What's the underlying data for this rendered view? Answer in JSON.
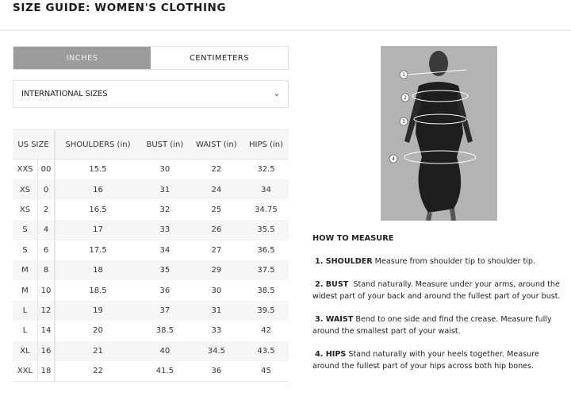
{
  "header": {
    "title": "SIZE GUIDE: WOMEN'S CLOTHING"
  },
  "units": {
    "inches": "INCHES",
    "centimeters": "CENTIMETERS",
    "selected": "INCHES"
  },
  "size_select": {
    "value": "INTERNATIONAL SIZES",
    "icon": "chevron-down-icon"
  },
  "table": {
    "headers": [
      "US SIZE",
      "SHOULDERS (in)",
      "BUST (in)",
      "WAIST (in)",
      "HIPS (in)"
    ],
    "rows": [
      [
        "XXS",
        "00",
        "15.5",
        "30",
        "22",
        "32.5"
      ],
      [
        "XS",
        "0",
        "16",
        "31",
        "24",
        "34"
      ],
      [
        "XS",
        "2",
        "16.5",
        "32",
        "25",
        "34.75"
      ],
      [
        "S",
        "4",
        "17",
        "33",
        "26",
        "35.5"
      ],
      [
        "S",
        "6",
        "17.5",
        "34",
        "27",
        "36.5"
      ],
      [
        "M",
        "8",
        "18",
        "35",
        "29",
        "37.5"
      ],
      [
        "M",
        "10",
        "18.5",
        "36",
        "30",
        "38.5"
      ],
      [
        "L",
        "12",
        "19",
        "37",
        "31",
        "39.5"
      ],
      [
        "L",
        "14",
        "20",
        "38.5",
        "33",
        "42"
      ],
      [
        "XL",
        "16",
        "21",
        "40",
        "34.5",
        "43.5"
      ],
      [
        "XXL",
        "18",
        "22",
        "41.5",
        "36",
        "45"
      ]
    ]
  },
  "photo": {
    "markers": [
      "1",
      "2",
      "3",
      "4"
    ]
  },
  "how_to": {
    "title": "HOW TO MEASURE",
    "items": [
      {
        "label": "1. SHOULDER",
        "text": " Measure from shoulder tip to shoulder tip."
      },
      {
        "label": "2. BUST",
        "text": "  Stand naturally. Measure under your arms, around the widest part of your back and around the fullest part of your bust."
      },
      {
        "label": "3. WAIST",
        "text": " Bend to one side and find the crease. Measure fully around the smallest part of your waist."
      },
      {
        "label": "4. HIPS",
        "text": " Stand naturally with your heels together. Measure around the fullest part of your hips across both hip bones."
      }
    ]
  }
}
